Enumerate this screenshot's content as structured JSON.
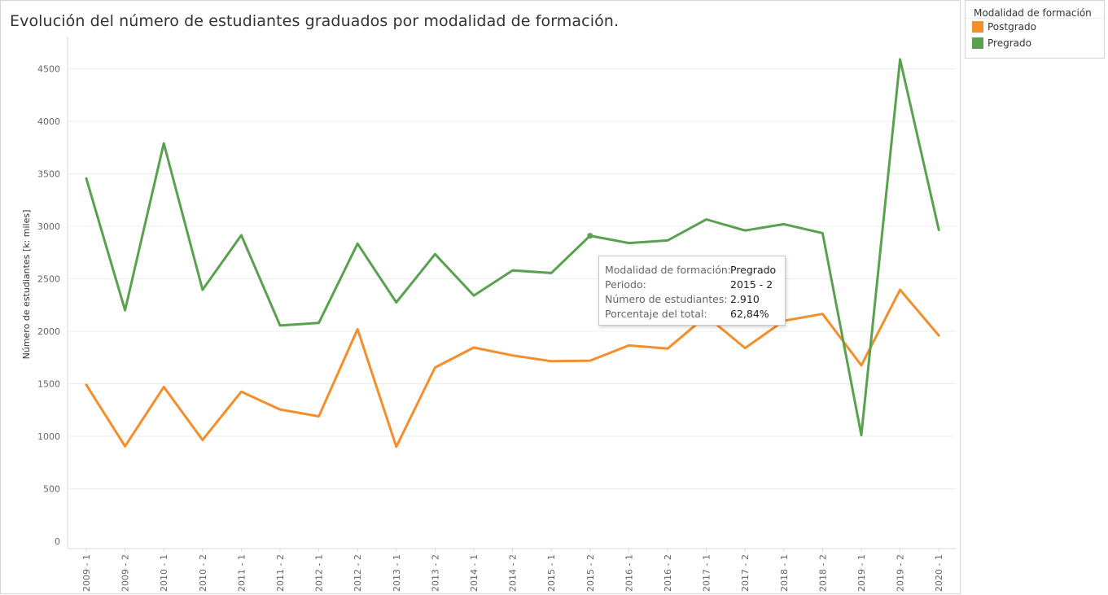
{
  "chart_data": {
    "type": "line",
    "title": "Evolución del número de estudiantes graduados por modalidad de formación.",
    "ylabel": "Número de estudiantes  [k: miles]",
    "xlabel": "",
    "ylim": [
      0,
      4700
    ],
    "yticks": [
      0,
      500,
      1000,
      1500,
      2000,
      2500,
      3000,
      3500,
      4000,
      4500
    ],
    "grid": true,
    "legend_position": "top-right",
    "categories": [
      "2009 - 1",
      "2009 - 2",
      "2010 - 1",
      "2010 - 2",
      "2011 - 1",
      "2011 - 2",
      "2012 - 1",
      "2012 - 2",
      "2013 - 1",
      "2013 - 2",
      "2014 - 1",
      "2014 - 2",
      "2015 - 1",
      "2015 - 2",
      "2016 - 1",
      "2016 - 2",
      "2017 - 1",
      "2017 - 2",
      "2018 - 1",
      "2018 - 2",
      "2019 - 1",
      "2019 - 2",
      "2020 - 1"
    ],
    "series": [
      {
        "name": "Pregrado",
        "color": "#59a14f",
        "values": [
          3455,
          2200,
          3790,
          2395,
          2915,
          2055,
          2080,
          2835,
          2275,
          2735,
          2340,
          2580,
          2555,
          2910,
          2840,
          2865,
          3065,
          2960,
          3020,
          2935,
          1010,
          4590,
          2965
        ]
      },
      {
        "name": "Postgrado",
        "color": "#f28e2b",
        "values": [
          1490,
          905,
          1470,
          965,
          1425,
          1255,
          1190,
          2020,
          900,
          1655,
          1845,
          1770,
          1715,
          1720,
          1865,
          1835,
          2145,
          1840,
          2100,
          2165,
          1675,
          2395,
          1960
        ]
      }
    ],
    "highlight": {
      "series": "Pregrado",
      "category": "2015 - 2"
    }
  },
  "legend": {
    "title": "Modalidad de formación",
    "items": [
      {
        "label": "Postgrado",
        "color": "#f28e2b"
      },
      {
        "label": "Pregrado",
        "color": "#59a14f"
      }
    ]
  },
  "tooltip": {
    "rows": [
      {
        "label": "Modalidad de formación:",
        "value": "Pregrado"
      },
      {
        "label": "Periodo:",
        "value": "2015 - 2"
      },
      {
        "label": "Número de estudiantes:",
        "value": "2.910"
      },
      {
        "label": "Porcentaje del total:",
        "value": "62,84%"
      }
    ]
  }
}
